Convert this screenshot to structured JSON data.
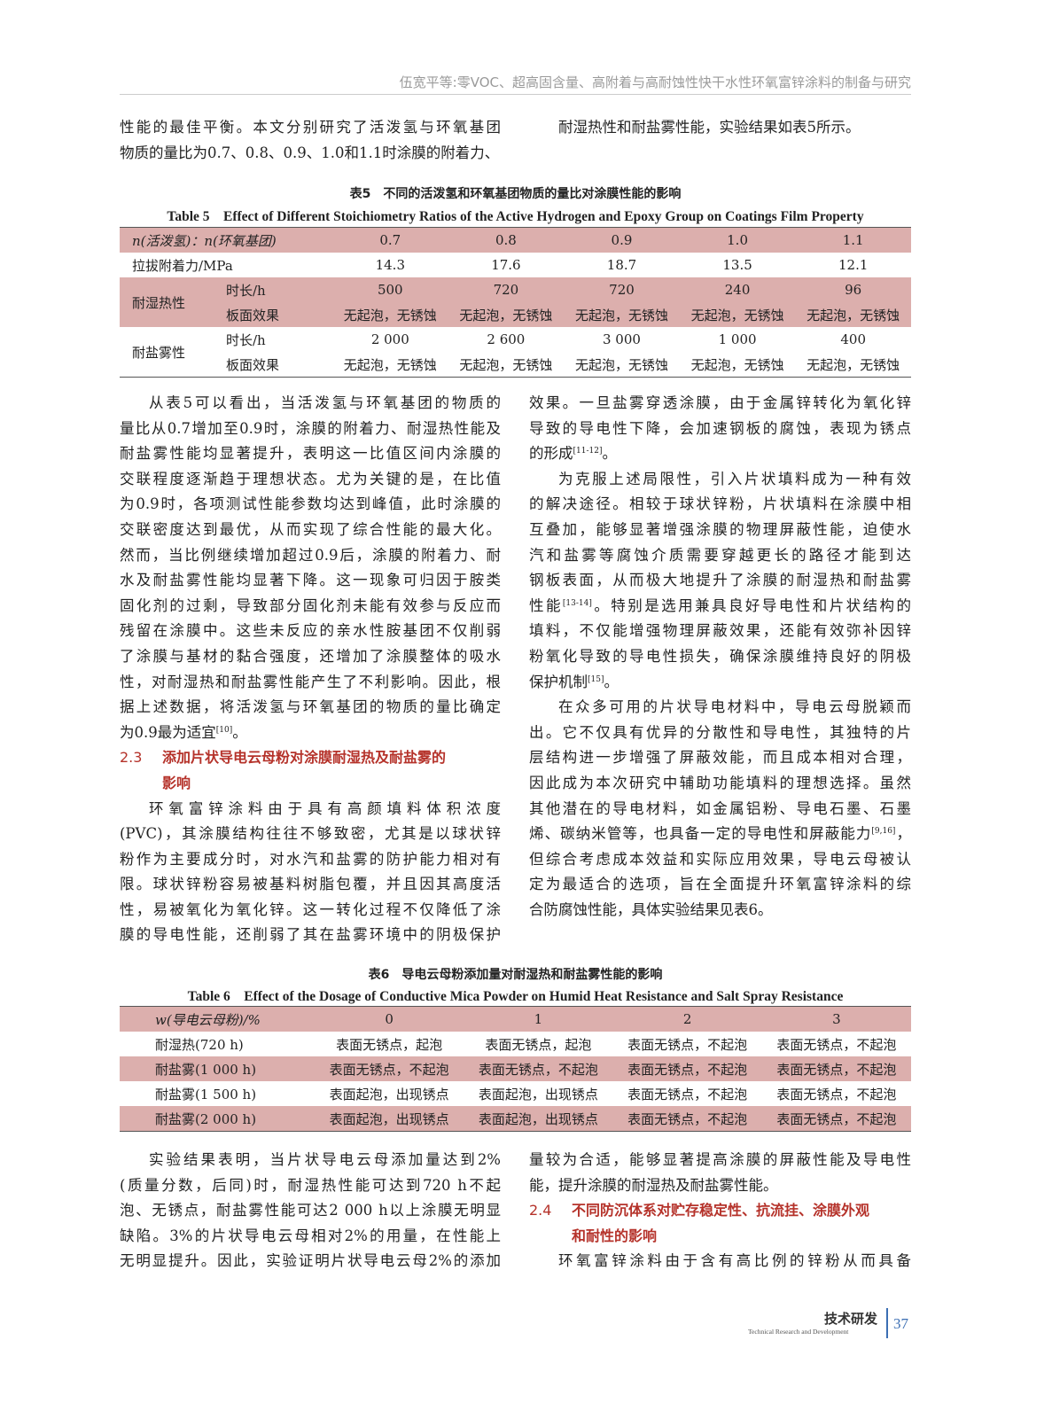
{
  "running_head": "伍宽平等:零VOC、超高固含量、高附着与高耐蚀性快干水性环氧富锌涂料的制备与研究",
  "top_left": [
    {
      "t": "性能的最佳平衡。本文分别研究了活泼氢与环氧基团"
    },
    {
      "t": "物质的量比为0.7、0.8、0.9、1.0和1.1时涂膜的附着力、",
      "last": true
    }
  ],
  "top_right": [
    {
      "t": "耐湿热性和耐盐雾性能，实验结果如表5所示。",
      "last": true,
      "ind": true
    }
  ],
  "table5": {
    "caption_cn": "表5　不同的活泼氢和环氧基团物质的量比对涂膜性能的影响",
    "caption_en": "Table 5　Effect of Different Stoichiometry Ratios of the Active Hydrogen and Epoxy Group on Coatings Film Property",
    "header_label": "n(活泼氢)：n(环氧基团)",
    "ratios": [
      "0.7",
      "0.8",
      "0.9",
      "1.0",
      "1.1"
    ],
    "adhesion_label": "拉拔附着力/MPa",
    "adhesion": [
      "14.3",
      "17.6",
      "18.7",
      "13.5",
      "12.1"
    ],
    "humid_label": "耐湿热性",
    "duration_label": "时长/h",
    "effect_label": "板面效果",
    "humid_hours": [
      "500",
      "720",
      "720",
      "240",
      "96"
    ],
    "humid_effect": [
      "无起泡，无锈蚀",
      "无起泡，无锈蚀",
      "无起泡，无锈蚀",
      "无起泡，无锈蚀",
      "无起泡，无锈蚀"
    ],
    "salt_label": "耐盐雾性",
    "salt_hours": [
      "2 000",
      "2 600",
      "3 000",
      "1 000",
      "400"
    ],
    "salt_effect": [
      "无起泡，无锈蚀",
      "无起泡，无锈蚀",
      "无起泡，无锈蚀",
      "无起泡，无锈蚀",
      "无起泡，无锈蚀"
    ]
  },
  "mid_left": [
    {
      "t": "从表5可以看出，当活泼氢与环氧基团的物质的",
      "ind": true
    },
    {
      "t": "量比从0.7增加至0.9时，涂膜的附着力、耐湿热性能及"
    },
    {
      "t": "耐盐雾性能均显著提升，表明这一比值区间内涂膜的"
    },
    {
      "t": "交联程度逐渐趋于理想状态。尤为关键的是，在比值"
    },
    {
      "t": "为0.9时，各项测试性能参数均达到峰值，此时涂膜的"
    },
    {
      "t": "交联密度达到最优，从而实现了综合性能的最大化。"
    },
    {
      "t": "然而，当比例继续增加超过0.9后，涂膜的附着力、耐"
    },
    {
      "t": "水及耐盐雾性能均显著下降。这一现象可归因于胺类"
    },
    {
      "t": "固化剂的过剩，导致部分固化剂未能有效参与反应而"
    },
    {
      "t": "残留在涂膜中。这些未反应的亲水性胺基团不仅削弱"
    },
    {
      "t": "了涂膜与基材的黏合强度，还增加了涂膜整体的吸水"
    },
    {
      "t": "性，对耐湿热和耐盐雾性能产生了不利影响。因此，根"
    },
    {
      "t": "据上述数据，将活泼氢与环氧基团的物质的量比确定"
    },
    {
      "t": "为0.9最为适宜",
      "sup": "[10]",
      "after": "。",
      "last": true
    }
  ],
  "section_2_3": {
    "num": "2.3",
    "title1": "添加片状导电云母粉对涂膜耐湿热及耐盐雾的",
    "title2": "影响"
  },
  "mid_left2": [
    {
      "t": "环氧富锌涂料由于具有高颜填料体积浓度",
      "ind": true
    },
    {
      "t": "(PVC)，其涂膜结构往往不够致密，尤其是以球状锌"
    },
    {
      "t": "粉作为主要成分时，对水汽和盐雾的防护能力相对有"
    },
    {
      "t": "限。球状锌粉容易被基料树脂包覆，并且因其高度活"
    },
    {
      "t": "性，易被氧化为氧化锌。这一转化过程不仅降低了涂"
    },
    {
      "t": "膜的导电性能，还削弱了其在盐雾环境中的阴极保护"
    }
  ],
  "mid_right": [
    {
      "t": "效果。一旦盐雾穿透涂膜，由于金属锌转化为氧化锌"
    },
    {
      "t": "导致的导电性下降，会加速钢板的腐蚀，表现为锈点"
    },
    {
      "t": "的形成",
      "sup": "[11-12]",
      "after": "。",
      "last": true
    },
    {
      "t": "为克服上述局限性，引入片状填料成为一种有效",
      "ind": true
    },
    {
      "t": "的解决途径。相较于球状锌粉，片状填料在涂膜中相"
    },
    {
      "t": "互叠加，能够显著增强涂膜的物理屏蔽性能，迫使水"
    },
    {
      "t": "汽和盐雾等腐蚀介质需要穿越更长的路径才能到达"
    },
    {
      "t": "钢板表面，从而极大地提升了涂膜的耐湿热和耐盐雾"
    },
    {
      "t": "性能",
      "sup": "[13-14]",
      "after": "。特别是选用兼具良好导电性和片状结构的"
    },
    {
      "t": "填料，不仅能增强物理屏蔽效果，还能有效弥补因锌"
    },
    {
      "t": "粉氧化导致的导电性损失，确保涂膜维持良好的阴极"
    },
    {
      "t": "保护机制",
      "sup": "[15]",
      "after": "。",
      "last": true
    },
    {
      "t": "在众多可用的片状导电材料中，导电云母脱颖而",
      "ind": true
    },
    {
      "t": "出。它不仅具有优异的分散性和导电性，其独特的片"
    },
    {
      "t": "层结构进一步增强了屏蔽效能，而且成本相对合理，"
    },
    {
      "t": "因此成为本次研究中辅助功能填料的理想选择。虽然"
    },
    {
      "t": "其他潜在的导电材料，如金属铝粉、导电石墨、石墨"
    },
    {
      "t": "烯、碳纳米管等，也具备一定的导电性和屏蔽能力",
      "sup": "[9,16]",
      "after": "，"
    },
    {
      "t": "但综合考虑成本效益和实际应用效果，导电云母被认"
    },
    {
      "t": "定为最适合的选项，旨在全面提升环氧富锌涂料的综"
    },
    {
      "t": "合防腐蚀性能，具体实验结果见表6。",
      "last": true
    }
  ],
  "table6": {
    "caption_cn": "表6　导电云母粉添加量对耐湿热和耐盐雾性能的影响",
    "caption_en": "Table 6　Effect of the Dosage of Conductive Mica Powder on Humid Heat Resistance and Salt Spray Resistance",
    "header_label": "w(导电云母粉)/%",
    "dosages": [
      "0",
      "1",
      "2",
      "3"
    ],
    "rows": [
      {
        "label": "耐湿热(720 h)",
        "cells": [
          "表面无锈点，起泡",
          "表面无锈点，起泡",
          "表面无锈点，不起泡",
          "表面无锈点，不起泡"
        ]
      },
      {
        "label": "耐盐雾(1 000 h)",
        "cells": [
          "表面无锈点，不起泡",
          "表面无锈点，不起泡",
          "表面无锈点，不起泡",
          "表面无锈点，不起泡"
        ]
      },
      {
        "label": "耐盐雾(1 500 h)",
        "cells": [
          "表面起泡，出现锈点",
          "表面起泡，出现锈点",
          "表面无锈点，不起泡",
          "表面无锈点，不起泡"
        ]
      },
      {
        "label": "耐盐雾(2 000 h)",
        "cells": [
          "表面起泡，出现锈点",
          "表面起泡，出现锈点",
          "表面无锈点，不起泡",
          "表面无锈点，不起泡"
        ]
      }
    ]
  },
  "bottom_left": [
    {
      "t": "实验结果表明，当片状导电云母添加量达到2%",
      "ind": true
    },
    {
      "t": "(质量分数，后同)时，耐湿热性能可达到720 h不起"
    },
    {
      "t": "泡、无锈点，耐盐雾性能可达2 000 h以上涂膜无明显"
    },
    {
      "t": "缺陷。3%的片状导电云母相对2%的用量，在性能上"
    },
    {
      "t": "无明显提升。因此，实验证明片状导电云母2%的添加"
    }
  ],
  "bottom_right": [
    {
      "t": "量较为合适，能够显著提高涂膜的屏蔽性能及导电性"
    },
    {
      "t": "能，提升涂膜的耐湿热及耐盐雾性能。",
      "last": true
    }
  ],
  "section_2_4": {
    "num": "2.4",
    "title1": "不同防沉体系对贮存稳定性、抗流挂、涂膜外观",
    "title2": "和耐性的影响"
  },
  "bottom_right2": [
    {
      "t": "环氧富锌涂料由于含有高比例的锌粉从而具备",
      "ind": true
    }
  ],
  "footer": {
    "section_cn": "技术研发",
    "section_en": "Technical Research and Development",
    "page": "37"
  },
  "colors": {
    "heading": "#b5322a",
    "table_shade": "#dcafad",
    "footer_accent": "#3b6eb3"
  }
}
